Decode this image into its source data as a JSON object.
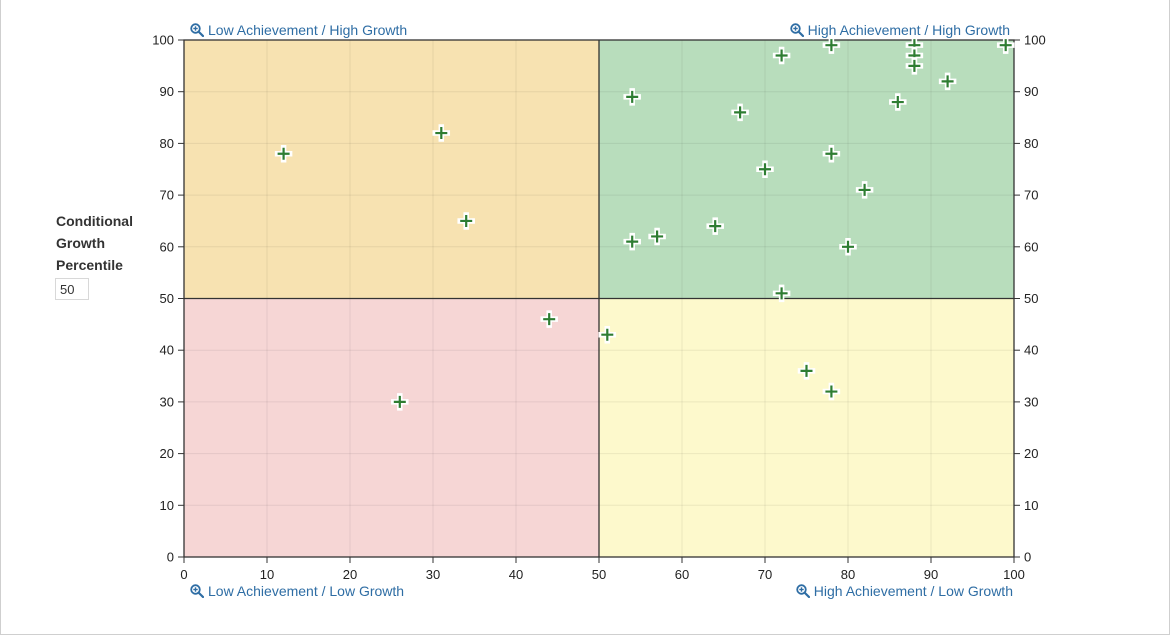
{
  "chart_data": {
    "type": "scatter",
    "xlim": [
      0,
      100
    ],
    "ylim": [
      0,
      100
    ],
    "x_ticks": [
      0,
      10,
      20,
      30,
      40,
      50,
      60,
      70,
      80,
      90,
      100
    ],
    "y_ticks": [
      0,
      10,
      20,
      30,
      40,
      50,
      60,
      70,
      80,
      90,
      100
    ],
    "grid": true,
    "quadrant_split": {
      "x": 50,
      "y": 50
    },
    "quadrant_colors": {
      "top_left": "#f7e2b1",
      "top_right": "#b8ddbc",
      "bottom_left": "#f6d6d5",
      "bottom_right": "#fdf9cc"
    },
    "marker_color": "#2e7d32",
    "points": [
      {
        "x": 12,
        "y": 78
      },
      {
        "x": 31,
        "y": 82
      },
      {
        "x": 34,
        "y": 65
      },
      {
        "x": 26,
        "y": 30
      },
      {
        "x": 44,
        "y": 46
      },
      {
        "x": 51,
        "y": 43
      },
      {
        "x": 54,
        "y": 89
      },
      {
        "x": 54,
        "y": 61
      },
      {
        "x": 57,
        "y": 62
      },
      {
        "x": 64,
        "y": 64
      },
      {
        "x": 67,
        "y": 86
      },
      {
        "x": 70,
        "y": 75
      },
      {
        "x": 72,
        "y": 97
      },
      {
        "x": 72,
        "y": 51
      },
      {
        "x": 75,
        "y": 36
      },
      {
        "x": 78,
        "y": 99
      },
      {
        "x": 78,
        "y": 78
      },
      {
        "x": 78,
        "y": 32
      },
      {
        "x": 80,
        "y": 60
      },
      {
        "x": 82,
        "y": 71
      },
      {
        "x": 86,
        "y": 88
      },
      {
        "x": 88,
        "y": 99
      },
      {
        "x": 88,
        "y": 97
      },
      {
        "x": 88,
        "y": 95
      },
      {
        "x": 92,
        "y": 92
      },
      {
        "x": 99,
        "y": 99
      }
    ]
  },
  "y_axis_label": {
    "line1": "Conditional",
    "line2": "Growth",
    "line3": "Percentile"
  },
  "cgp_input": {
    "value": "50"
  },
  "quadrant_links": {
    "top_left": "Low Achievement / High Growth",
    "top_right": "High Achievement / High Growth",
    "bottom_left": "Low Achievement / Low Growth",
    "bottom_right": "High Achievement / Low Growth"
  },
  "icons": {
    "zoom": "zoom-in-icon"
  },
  "accent_color": "#2e6da4"
}
